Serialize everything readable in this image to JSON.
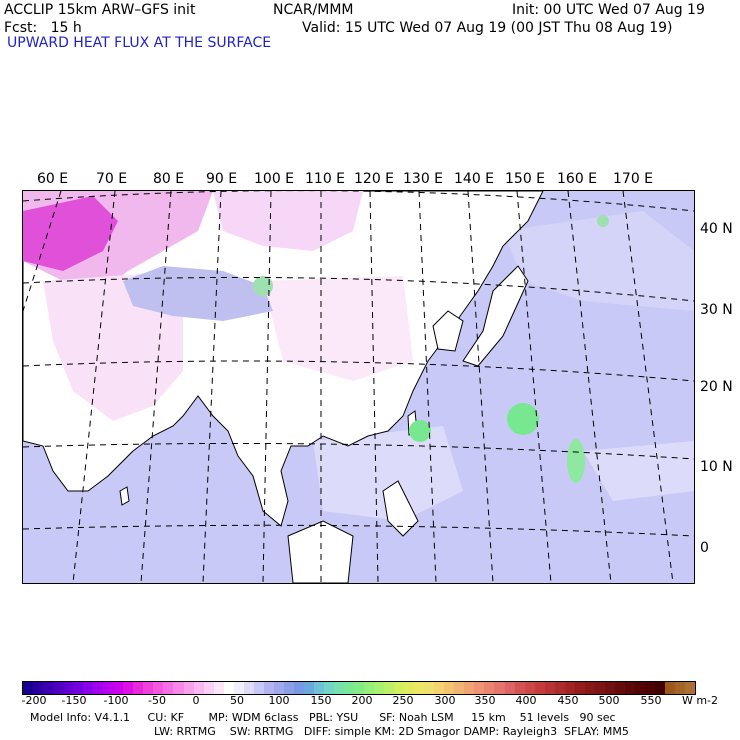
{
  "header": {
    "line1_left": "ACCLIP 15km ARW–GFS init",
    "line1_center": "NCAR/MMM",
    "line1_right": "Init: 00 UTC Wed 07 Aug 19",
    "line2_left": "Fcst:   15 h",
    "line2_right": "Valid: 15 UTC Wed 07 Aug 19 (00 JST Thu 08 Aug 19)",
    "field_title": "UPWARD HEAT FLUX AT THE SURFACE"
  },
  "map": {
    "longitude_labels": [
      "60 E",
      "70 E",
      "80 E",
      "90 E",
      "100 E",
      "110 E",
      "120 E",
      "130 E",
      "140 E",
      "150 E",
      "160 E",
      "170 E"
    ],
    "latitude_labels": [
      "40 N",
      "30 N",
      "20 N",
      "10 N",
      "0"
    ],
    "colors": {
      "ocean_low": "#c9c9f7",
      "land": "#ffffff",
      "land_pink": "#f7d7f7",
      "hot_pink": "#e050d8",
      "green_high": "#78e890",
      "grid": "#000000"
    }
  },
  "colorbar": {
    "tick_labels": [
      "-200",
      "-150",
      "-100",
      "-50",
      "0",
      "50",
      "100",
      "150",
      "200",
      "250",
      "300",
      "350",
      "400",
      "450",
      "500",
      "550"
    ],
    "unit": "W m-2",
    "colors": [
      "#1a0090",
      "#2a00a0",
      "#3a00b0",
      "#4d00c0",
      "#6000d0",
      "#7400e0",
      "#8800ec",
      "#a000f0",
      "#b800f0",
      "#cc00ec",
      "#dc10e4",
      "#e828dc",
      "#f040dc",
      "#f458e0",
      "#f670e4",
      "#f888e8",
      "#f9a0ec",
      "#fab8f0",
      "#fbd0f4",
      "#fce6f8",
      "#ffffff",
      "#f0f0ff",
      "#dcdcfa",
      "#c8c8f6",
      "#b4b4f2",
      "#a0a8ee",
      "#8ca0ea",
      "#7898e6",
      "#6ca8e0",
      "#70c0d8",
      "#74d4c8",
      "#78e0b0",
      "#7ce898",
      "#84ec84",
      "#94f078",
      "#a8f070",
      "#bcf068",
      "#d0f060",
      "#e0ec60",
      "#ece864",
      "#f0e070",
      "#f4d470",
      "#f4c470",
      "#f2b474",
      "#f0a474",
      "#ee9474",
      "#ea8470",
      "#e4746c",
      "#dc6464",
      "#d45454",
      "#cc4848",
      "#c43c3c",
      "#b83434",
      "#ac2c2c",
      "#a02424",
      "#941c1c",
      "#881818",
      "#7c1414",
      "#701010",
      "#660c0c",
      "#5c0808",
      "#540404",
      "#4c0202",
      "#440000",
      "#9c5818",
      "#a46428",
      "#ac7034"
    ]
  },
  "model_info": {
    "line1": "Model Info: V4.1.1     CU: KF       MP: WDM 6class   PBL: YSU      SF: Noah LSM     15 km    51 levels   90 sec",
    "line2": "LW: RRTMG    SW: RRTMG   DIFF: simple KM: 2D Smagor DAMP: Rayleigh3  SFLAY: MM5"
  }
}
